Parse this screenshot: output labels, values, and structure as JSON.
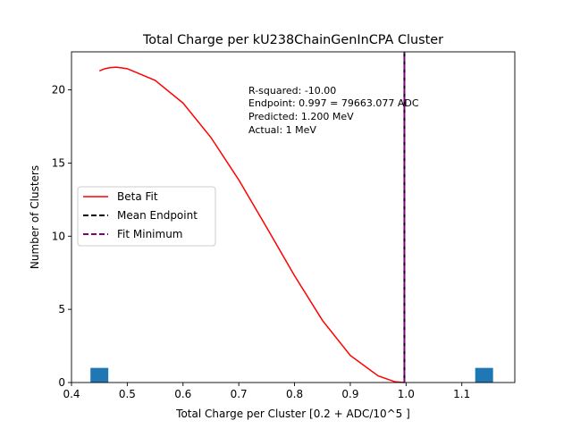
{
  "chart_data": {
    "type": "bar",
    "title": "Total Charge per kU238ChainGenInCPA Cluster",
    "xlabel": "Total Charge per Cluster [0.2 + ADC/10^5 ]",
    "ylabel": "Number of Clusters",
    "xlim": [
      0.4,
      1.195
    ],
    "ylim": [
      0,
      22.6
    ],
    "xticks": [
      0.4,
      0.5,
      0.6,
      0.7,
      0.8,
      0.9,
      1.0,
      1.1
    ],
    "xtick_labels": [
      "0.4",
      "0.5",
      "0.6",
      "0.7",
      "0.8",
      "0.9",
      "1.0",
      "1.1"
    ],
    "yticks": [
      0,
      5,
      10,
      15,
      20
    ],
    "ytick_labels": [
      "0",
      "5",
      "10",
      "15",
      "20"
    ],
    "histogram": {
      "color": "#1f77b4",
      "bins": [
        {
          "x0": 0.434,
          "x1": 0.466,
          "count": 1
        },
        {
          "x0": 1.124,
          "x1": 1.156,
          "count": 1
        }
      ]
    },
    "beta_fit": {
      "name": "Beta Fit",
      "color": "#ff0000",
      "x": [
        0.45,
        0.46,
        0.47,
        0.48,
        0.5,
        0.55,
        0.6,
        0.65,
        0.7,
        0.75,
        0.8,
        0.85,
        0.9,
        0.95,
        0.98,
        0.997
      ],
      "y": [
        21.3,
        21.45,
        21.52,
        21.55,
        21.45,
        20.65,
        19.1,
        16.75,
        13.85,
        10.6,
        7.3,
        4.25,
        1.85,
        0.45,
        0.05,
        0.0
      ]
    },
    "mean_endpoint": {
      "name": "Mean Endpoint",
      "x": 0.997,
      "color": "#000000"
    },
    "fit_minimum": {
      "name": "Fit Minimum",
      "x": 0.997,
      "color": "#800080"
    },
    "annotations": [
      "R-squared: -10.00",
      "Endpoint: 0.997 = 79663.077 ADC",
      "Predicted: 1.200 MeV",
      "Actual: 1 MeV"
    ],
    "legend": {
      "placement": "center-left",
      "entries": [
        "Beta Fit",
        "Mean Endpoint",
        "Fit Minimum"
      ]
    },
    "grid": false
  }
}
